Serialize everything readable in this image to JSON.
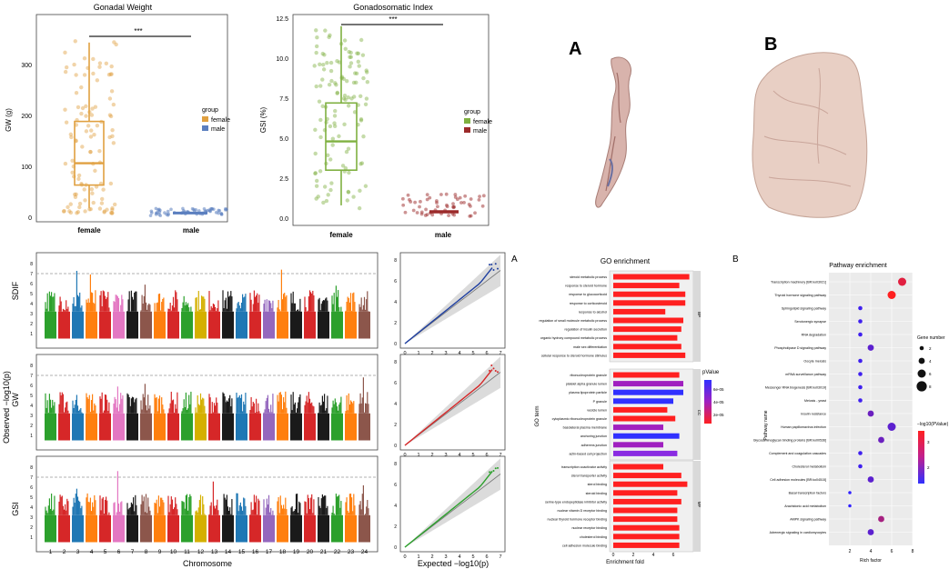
{
  "gonadal_weight": {
    "title": "Gonadal Weight",
    "ylabel": "GW (g)",
    "yticks": [
      "0",
      "100",
      "200",
      "300"
    ],
    "categories": [
      "female",
      "male"
    ],
    "significance": "***",
    "legend_title": "group",
    "legend_items": [
      "female",
      "male"
    ],
    "colors": {
      "female": "#e0a040",
      "male": "#5b7fbf"
    }
  },
  "gonadosomatic_index": {
    "title": "Gonadosomatic Index",
    "ylabel": "GSI (%)",
    "yticks": [
      "0.0",
      "2.5",
      "5.0",
      "7.5",
      "10.0",
      "12.5"
    ],
    "categories": [
      "female",
      "male"
    ],
    "significance": "***",
    "legend_title": "group",
    "legend_items": [
      "female",
      "male"
    ],
    "colors": {
      "female": "#7fb040",
      "male": "#9b2a2a"
    }
  },
  "photos": {
    "label_a": "A",
    "label_b": "B"
  },
  "manhattan": {
    "ylabel_sdif": "SDIF",
    "ylabel_gw": "GW",
    "ylabel_gsi": "GSI",
    "ylabel_common": "Observed −log10(p)",
    "xlabel": "Chromosome",
    "chromosomes": [
      "1",
      "2",
      "3",
      "4",
      "5",
      "6",
      "7",
      "8",
      "9",
      "10",
      "11",
      "12",
      "13",
      "14",
      "15",
      "16",
      "17",
      "18",
      "19",
      "20",
      "21",
      "22",
      "23",
      "24"
    ],
    "yticks": [
      "1",
      "2",
      "3",
      "4",
      "5",
      "6",
      "7",
      "8"
    ],
    "chrom_colors": [
      "#2ca02c",
      "#d62728",
      "#1f77b4",
      "#ff7f0e",
      "#d62728",
      "#e377c2",
      "#1a1a1a",
      "#8c564b",
      "#ff7f0e",
      "#d62728",
      "#2ca02c",
      "#d4b000",
      "#d62728",
      "#1a1a1a",
      "#1f77b4",
      "#d62728",
      "#9467bd",
      "#ff7f0e",
      "#1a1a1a",
      "#d62728",
      "#1a1a1a",
      "#2ca02c",
      "#ff7f0e",
      "#8c564b"
    ]
  },
  "qq": {
    "xlabel": "Expected  −log10(p)",
    "xticks": [
      "0",
      "1",
      "2",
      "3",
      "4",
      "5",
      "6",
      "7"
    ],
    "yticks": [
      "0",
      "2",
      "4",
      "6",
      "8"
    ],
    "line_colors": [
      "#1f3fa0",
      "#d62728",
      "#2ca02c"
    ]
  },
  "go_enrichment": {
    "panel_label": "A",
    "title": "GO enrichment",
    "xlabel": "Enrichment fold",
    "ylabel": "GO term",
    "legend_title": "pValue",
    "legend_ticks": [
      "6e-05",
      "4e-05",
      "2e-05"
    ],
    "groups": [
      "BP",
      "CC",
      "MF"
    ],
    "xticks": [
      "0",
      "2",
      "4",
      "6"
    ],
    "terms_bp": [
      "steroid metabolic process",
      "response to steroid hormone",
      "response to glucocorticoid",
      "response to corticosteroid",
      "response to alcohol",
      "regulation of small molecule metabolic process",
      "regulation of insulin secretion",
      "organic hydroxy compound metabolic process",
      "male sex differentiation",
      "cellular response to steroid hormone stimulus"
    ],
    "terms_cc": [
      "ribonucleoprotein granule",
      "platelet alpha granule lumen",
      "plasma lipoprotein particle",
      "P granule",
      "vesicle lumen",
      "cytoplasmic ribonucleoprotein granule",
      "basolateral plasma membrane",
      "anchoring junction",
      "adherens junction",
      "actin-based cell projection"
    ],
    "terms_mf": [
      "transcription coactivator activity",
      "sterol transporter activity",
      "sterol binding",
      "steroid binding",
      "serine-type endopeptidase inhibitor activity",
      "nuclear vitamin D receptor binding",
      "nuclear thyroid hormone receptor binding",
      "nuclear receptor binding",
      "cholesterol binding",
      "cell adhesion molecule binding"
    ]
  },
  "chart_data": [
    {
      "type": "bar",
      "title": "GO enrichment",
      "xlabel": "Enrichment fold",
      "categories": [
        "steroid metabolic process",
        "response to steroid hormone",
        "response to glucocorticoid",
        "response to corticosteroid",
        "response to alcohol",
        "regulation of small molecule metabolic process",
        "regulation of insulin secretion",
        "organic hydroxy compound metabolic process",
        "male sex differentiation",
        "cellular response to steroid hormone stimulus",
        "ribonucleoprotein granule",
        "platelet alpha granule lumen",
        "plasma lipoprotein particle",
        "P granule",
        "vesicle lumen",
        "cytoplasmic ribonucleoprotein granule",
        "basolateral plasma membrane",
        "anchoring junction",
        "adherens junction",
        "actin-based cell projection",
        "transcription coactivator activity",
        "sterol transporter activity",
        "sterol binding",
        "steroid binding",
        "serine-type endopeptidase inhibitor activity",
        "nuclear vitamin D receptor binding",
        "nuclear thyroid hormone receptor binding",
        "nuclear receptor binding",
        "cholesterol binding",
        "cell adhesion molecule binding"
      ],
      "values": [
        7.6,
        6.6,
        7.2,
        7.2,
        5.2,
        7.0,
        6.8,
        6.4,
        6.8,
        7.2,
        6.6,
        7.0,
        7.0,
        6.0,
        5.4,
        6.2,
        5.0,
        6.6,
        5.0,
        6.4,
        5.0,
        6.8,
        7.4,
        6.4,
        6.8,
        6.4,
        6.4,
        6.6,
        6.6,
        6.6
      ],
      "color_idx": [
        0,
        0,
        0,
        0,
        0,
        0,
        0,
        0,
        0,
        0,
        0,
        1,
        2,
        2,
        0,
        0,
        1,
        2,
        1,
        3,
        0,
        0,
        0,
        0,
        0,
        0,
        0,
        0,
        0,
        0
      ],
      "xlim": [
        0,
        8
      ]
    },
    {
      "type": "scatter",
      "title": "Pathway enrichment",
      "xlabel": "Rich factor",
      "ylabel": "Pathway name",
      "categories": [
        "Transcription machinery [BR:ko03021]",
        "Thyroid hormone signaling pathway",
        "Sphingolipid signaling pathway",
        "Serotonergic synapse",
        "RNA degradation",
        "Phospholipase D signaling pathway",
        "Oocyte meiosis",
        "mRNA surveillance pathway",
        "Messenger RNA biogenesis [BR:ko03019]",
        "Meiosis - yeast",
        "Insulin resistance",
        "Human papillomavirus infection",
        "Glycosaminoglycan binding proteins [BR:ko00536]",
        "Complement and coagulation cascades",
        "Cholesterol metabolism",
        "Cell adhesion molecules [BR:ko04515]",
        "Basal transcription factors",
        "Arachidonic acid metabolism",
        "AMPK signaling pathway",
        "Adrenergic signaling in cardiomyocytes"
      ],
      "x": [
        7.0,
        6.0,
        3.0,
        3.0,
        3.0,
        4.0,
        3.0,
        3.0,
        3.0,
        3.0,
        4.0,
        6.0,
        5.0,
        3.0,
        3.0,
        4.0,
        2.0,
        2.0,
        5.0,
        4.0
      ],
      "gene_number": [
        6,
        6,
        2,
        2,
        2,
        4,
        2,
        2,
        2,
        2,
        4,
        6,
        4,
        2,
        2,
        4,
        1,
        1,
        4,
        4
      ],
      "neg_log10_p": [
        3.2,
        3.6,
        1.0,
        1.0,
        1.0,
        1.4,
        1.0,
        1.0,
        1.0,
        1.0,
        1.6,
        1.4,
        1.6,
        1.0,
        1.0,
        1.4,
        0.8,
        0.8,
        2.4,
        1.4
      ],
      "xlim": [
        0,
        8
      ],
      "legend_size_title": "Gene number",
      "legend_size_values": [
        "2",
        "4",
        "6",
        "8"
      ],
      "legend_color_title": "−log10(PValue)",
      "legend_color_ticks": [
        "3",
        "2"
      ]
    }
  ],
  "pathway": {
    "panel_label": "B",
    "title": "Pathway enrichment",
    "xlabel": "Rich factor",
    "ylabel": "Pathway name",
    "xticks": [
      "2",
      "4",
      "6",
      "8"
    ],
    "size_title": "Gene number",
    "color_title": "−log10(PValue)"
  }
}
